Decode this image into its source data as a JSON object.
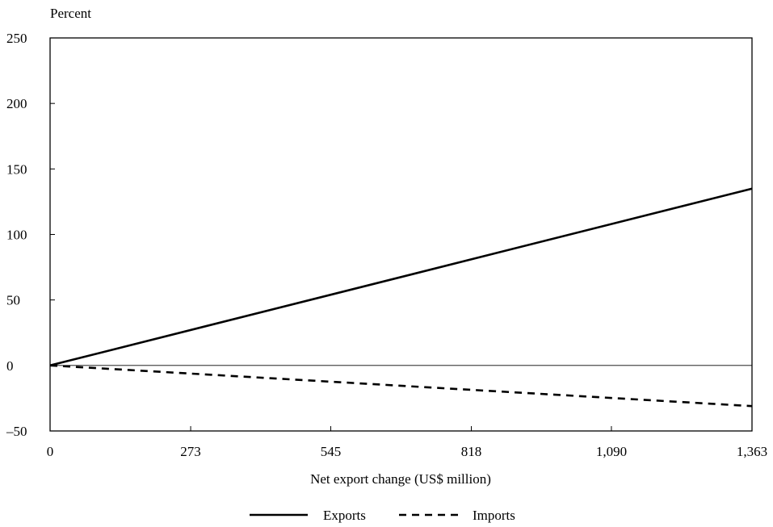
{
  "chart_data": {
    "type": "line",
    "ylabel": "Percent",
    "xlabel": "Net export change (US$ million)",
    "xlim": [
      0,
      1363
    ],
    "ylim": [
      -50,
      250
    ],
    "x_ticks": [
      0,
      273,
      545,
      818,
      1090,
      1363
    ],
    "x_tick_labels": [
      "0",
      "273",
      "545",
      "818",
      "1,090",
      "1,363"
    ],
    "y_ticks": [
      -50,
      0,
      50,
      100,
      150,
      200,
      250
    ],
    "y_tick_labels": [
      "–50",
      "0",
      "50",
      "100",
      "150",
      "200",
      "250"
    ],
    "series": [
      {
        "name": "Exports",
        "style": "solid",
        "x": [
          0,
          1363
        ],
        "y": [
          0,
          135
        ]
      },
      {
        "name": "Imports",
        "style": "dashed",
        "x": [
          0,
          1363
        ],
        "y": [
          0,
          -31
        ]
      }
    ],
    "reference_line_y": 0,
    "legend_position": "bottom-center",
    "grid": false,
    "line_color": "#000000"
  }
}
